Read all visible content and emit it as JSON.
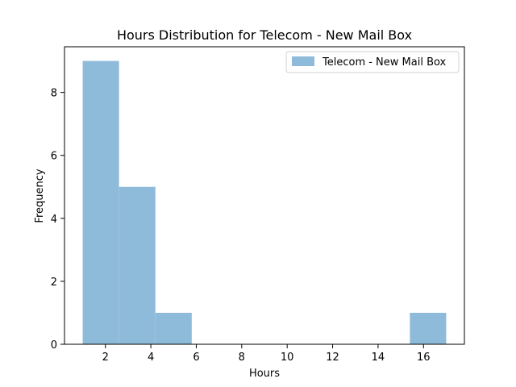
{
  "chart_data": {
    "type": "bar",
    "title": "Hours Distribution for Telecom - New Mail Box",
    "xlabel": "Hours",
    "ylabel": "Frequency",
    "xlim": [
      0.2,
      17.8
    ],
    "ylim": [
      0,
      9.45
    ],
    "x_ticks": [
      2,
      4,
      6,
      8,
      10,
      12,
      14,
      16
    ],
    "y_ticks": [
      0,
      2,
      4,
      6,
      8
    ],
    "legend": {
      "position": "top-right",
      "label": "Telecom - New Mail Box"
    },
    "grid": false,
    "series": [
      {
        "name": "Telecom - New Mail Box",
        "color": "#8fbbdb",
        "bins": [
          {
            "start": 1.0,
            "end": 2.6,
            "count": 9
          },
          {
            "start": 2.6,
            "end": 4.2,
            "count": 5
          },
          {
            "start": 4.2,
            "end": 5.8,
            "count": 1
          },
          {
            "start": 5.8,
            "end": 7.4,
            "count": 0
          },
          {
            "start": 7.4,
            "end": 9.0,
            "count": 0
          },
          {
            "start": 9.0,
            "end": 10.6,
            "count": 0
          },
          {
            "start": 10.6,
            "end": 12.2,
            "count": 0
          },
          {
            "start": 12.2,
            "end": 13.8,
            "count": 0
          },
          {
            "start": 13.8,
            "end": 15.4,
            "count": 0
          },
          {
            "start": 15.4,
            "end": 17.0,
            "count": 1
          }
        ]
      }
    ]
  }
}
